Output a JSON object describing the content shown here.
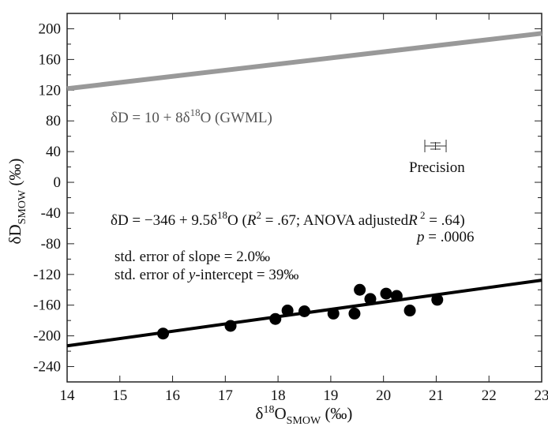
{
  "chart_data": {
    "type": "scatter",
    "xlabel": {
      "base": "δ",
      "sup": "18",
      "main": "O",
      "sub": "SMOW",
      "unit": " (‰)"
    },
    "ylabel": {
      "main": "δD",
      "sub": "SMOW",
      "unit": " (‰)"
    },
    "xlim": [
      14,
      23
    ],
    "ylim": [
      -260,
      220
    ],
    "xticks": [
      14,
      15,
      16,
      17,
      18,
      19,
      20,
      21,
      22,
      23
    ],
    "yticks": [
      200,
      160,
      120,
      80,
      40,
      0,
      -40,
      -80,
      -120,
      -160,
      -200,
      -240
    ],
    "grid": false,
    "points": [
      {
        "x": 15.82,
        "y": -197
      },
      {
        "x": 17.1,
        "y": -187
      },
      {
        "x": 17.95,
        "y": -178
      },
      {
        "x": 18.18,
        "y": -167
      },
      {
        "x": 18.5,
        "y": -168
      },
      {
        "x": 19.05,
        "y": -171
      },
      {
        "x": 19.45,
        "y": -171
      },
      {
        "x": 19.55,
        "y": -140
      },
      {
        "x": 19.75,
        "y": -152
      },
      {
        "x": 20.05,
        "y": -145
      },
      {
        "x": 20.25,
        "y": -148
      },
      {
        "x": 20.5,
        "y": -167
      },
      {
        "x": 21.02,
        "y": -153
      }
    ],
    "lines": [
      {
        "name": "GWML",
        "intercept": 10,
        "slope": 8,
        "color": "#999999"
      },
      {
        "name": "regression",
        "intercept": -346,
        "slope": 9.5,
        "color": "#000000"
      }
    ],
    "precision_bar": {
      "label": "Precision"
    },
    "annotations": {
      "gwml": {
        "a": "δD = 10 + 8δ",
        "sup": "18",
        "b": "O  (GWML)"
      },
      "regression": {
        "a": "δD = −346 + 9.5δ",
        "sup": "18",
        "b": "O  (",
        "r": "R",
        "sup2": "2",
        "c": " = .67; ANOVA adjusted",
        "r2": "R",
        "sup3": " 2",
        "d": " = .64)"
      },
      "p": {
        "letter": "p",
        "rest": " = .0006"
      },
      "slope_err": "std. error of slope = 2.0‰",
      "intercept_err": {
        "a": "std. error  of ",
        "y": "y",
        "b": "-intercept = 39‰"
      }
    },
    "colors": {
      "gwml": "#999999",
      "regression": "#000000",
      "points": "#000000",
      "axis": "#222222"
    }
  }
}
